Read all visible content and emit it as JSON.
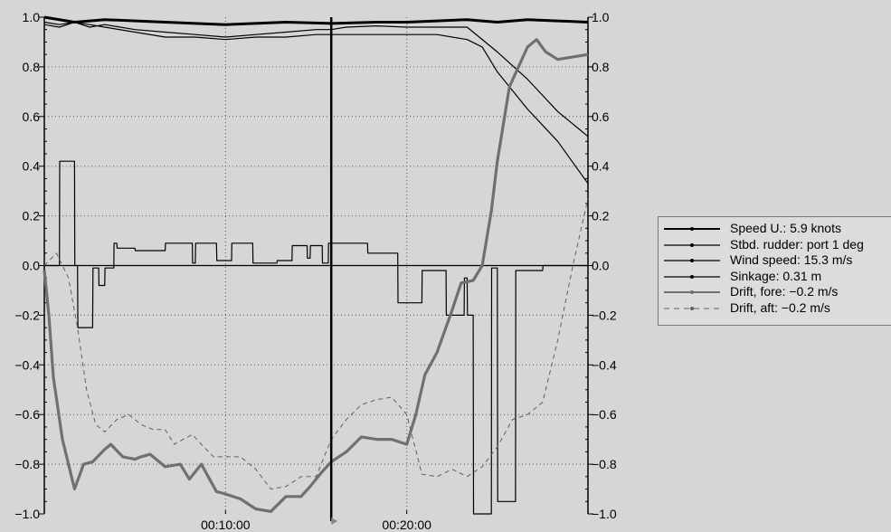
{
  "chart_data": {
    "type": "line",
    "xlabel": "",
    "ylabel": "",
    "x_range_seconds": [
      0,
      1800
    ],
    "xticks": [
      "00:10:00",
      "00:20:00"
    ],
    "yticks": [
      1.0,
      0.8,
      0.6,
      0.4,
      0.2,
      0.0,
      -0.2,
      -0.4,
      -0.6,
      -0.8,
      -1.0
    ],
    "ylim": [
      -1.0,
      1.0
    ],
    "grid": true,
    "legend_position": "right",
    "cursor_time_seconds": 950,
    "series": [
      {
        "name": "Speed U.: 5.9 knots",
        "color": "#000000",
        "style": "solid",
        "t": [
          0,
          100,
          200,
          400,
          600,
          800,
          950,
          1100,
          1200,
          1300,
          1400,
          1500,
          1600,
          1700,
          1800
        ],
        "values": [
          1.0,
          0.98,
          0.99,
          0.98,
          0.97,
          0.98,
          0.975,
          0.98,
          0.98,
          0.985,
          0.99,
          0.98,
          0.99,
          0.985,
          0.98
        ]
      },
      {
        "name": "Stbd. rudder: port 1 deg",
        "color": "#000000",
        "style": "solid",
        "t": [
          0,
          50,
          51,
          100,
          101,
          110,
          111,
          160,
          161,
          180,
          181,
          200,
          201,
          230,
          231,
          240,
          241,
          300,
          301,
          400,
          401,
          490,
          491,
          500,
          501,
          570,
          571,
          620,
          621,
          690,
          691,
          770,
          771,
          820,
          821,
          870,
          871,
          880,
          881,
          920,
          921,
          940,
          941,
          1070,
          1071,
          1170,
          1171,
          1250,
          1251,
          1330,
          1331,
          1390,
          1391,
          1400,
          1401,
          1420,
          1421,
          1480,
          1481,
          1500,
          1501,
          1560,
          1561,
          1650,
          1651,
          1800
        ],
        "values": [
          0,
          0,
          0.42,
          0.42,
          0,
          0,
          -0.25,
          -0.25,
          -0.01,
          -0.01,
          -0.08,
          -0.08,
          -0.01,
          -0.01,
          0.09,
          0.09,
          0.07,
          0.07,
          0.06,
          0.06,
          0.09,
          0.09,
          0.01,
          0.01,
          0.09,
          0.09,
          0.02,
          0.02,
          0.09,
          0.09,
          0.01,
          0.01,
          0.02,
          0.02,
          0.08,
          0.08,
          0.03,
          0.03,
          0.08,
          0.08,
          0.01,
          0.01,
          0.09,
          0.09,
          0.05,
          0.05,
          -0.15,
          -0.15,
          -0.02,
          -0.02,
          -0.2,
          -0.2,
          -0.05,
          -0.05,
          -0.2,
          -0.2,
          -1.0,
          -1.0,
          -0.01,
          -0.01,
          -0.95,
          -0.95,
          -0.02,
          -0.02,
          0.0,
          0.0
        ]
      },
      {
        "name": "Wind speed: 15.3 m/s",
        "color": "#000000",
        "style": "solid",
        "t": [
          0,
          50,
          100,
          150,
          200,
          300,
          400,
          500,
          600,
          700,
          800,
          900,
          950,
          1000,
          1100,
          1200,
          1300,
          1400,
          1500,
          1600,
          1700,
          1800
        ],
        "values": [
          0.98,
          0.97,
          0.98,
          0.96,
          0.97,
          0.95,
          0.94,
          0.93,
          0.92,
          0.93,
          0.94,
          0.95,
          0.95,
          0.96,
          0.965,
          0.96,
          0.96,
          0.96,
          0.86,
          0.75,
          0.62,
          0.52
        ]
      },
      {
        "name": "Sinkage: 0.31 m",
        "color": "#000000",
        "style": "solid",
        "t": [
          0,
          50,
          100,
          150,
          200,
          300,
          400,
          500,
          600,
          700,
          800,
          900,
          950,
          1000,
          1100,
          1200,
          1300,
          1400,
          1450,
          1500,
          1600,
          1700,
          1800
        ],
        "values": [
          0.97,
          0.96,
          0.98,
          0.97,
          0.96,
          0.94,
          0.92,
          0.92,
          0.91,
          0.92,
          0.92,
          0.93,
          0.93,
          0.93,
          0.93,
          0.93,
          0.93,
          0.91,
          0.88,
          0.78,
          0.63,
          0.5,
          0.33
        ]
      },
      {
        "name": "Drift, fore: −0.2 m/s",
        "color": "#707070",
        "style": "thick",
        "t": [
          0,
          15,
          30,
          60,
          100,
          130,
          160,
          200,
          220,
          260,
          300,
          320,
          350,
          400,
          450,
          480,
          520,
          570,
          600,
          650,
          700,
          750,
          800,
          850,
          880,
          920,
          950,
          1000,
          1050,
          1100,
          1150,
          1200,
          1230,
          1260,
          1300,
          1350,
          1380,
          1420,
          1450,
          1480,
          1500,
          1540,
          1600,
          1630,
          1660,
          1700,
          1750,
          1800
        ],
        "values": [
          -0.02,
          -0.2,
          -0.45,
          -0.7,
          -0.9,
          -0.8,
          -0.79,
          -0.74,
          -0.72,
          -0.77,
          -0.78,
          -0.77,
          -0.76,
          -0.81,
          -0.8,
          -0.86,
          -0.8,
          -0.91,
          -0.92,
          -0.94,
          -0.98,
          -0.99,
          -0.93,
          -0.93,
          -0.89,
          -0.83,
          -0.79,
          -0.75,
          -0.69,
          -0.7,
          -0.7,
          -0.72,
          -0.6,
          -0.44,
          -0.35,
          -0.18,
          -0.07,
          -0.06,
          0.0,
          0.22,
          0.42,
          0.72,
          0.88,
          0.91,
          0.86,
          0.83,
          0.84,
          0.85
        ]
      },
      {
        "name": "Drift, aft: −0.2 m/s",
        "color": "#606060",
        "style": "dashed",
        "t": [
          0,
          40,
          80,
          110,
          140,
          170,
          200,
          240,
          280,
          320,
          360,
          400,
          430,
          460,
          490,
          520,
          560,
          600,
          650,
          700,
          750,
          800,
          850,
          900,
          950,
          1000,
          1050,
          1100,
          1150,
          1200,
          1250,
          1300,
          1350,
          1400,
          1450,
          1500,
          1550,
          1600,
          1650,
          1700,
          1750,
          1800
        ],
        "values": [
          0.0,
          0.05,
          -0.05,
          -0.25,
          -0.5,
          -0.64,
          -0.67,
          -0.62,
          -0.6,
          -0.64,
          -0.66,
          -0.66,
          -0.72,
          -0.7,
          -0.68,
          -0.72,
          -0.77,
          -0.77,
          -0.77,
          -0.82,
          -0.9,
          -0.89,
          -0.85,
          -0.85,
          -0.7,
          -0.62,
          -0.56,
          -0.54,
          -0.53,
          -0.6,
          -0.84,
          -0.85,
          -0.82,
          -0.85,
          -0.81,
          -0.73,
          -0.62,
          -0.6,
          -0.55,
          -0.3,
          0.0,
          0.27
        ]
      }
    ]
  }
}
